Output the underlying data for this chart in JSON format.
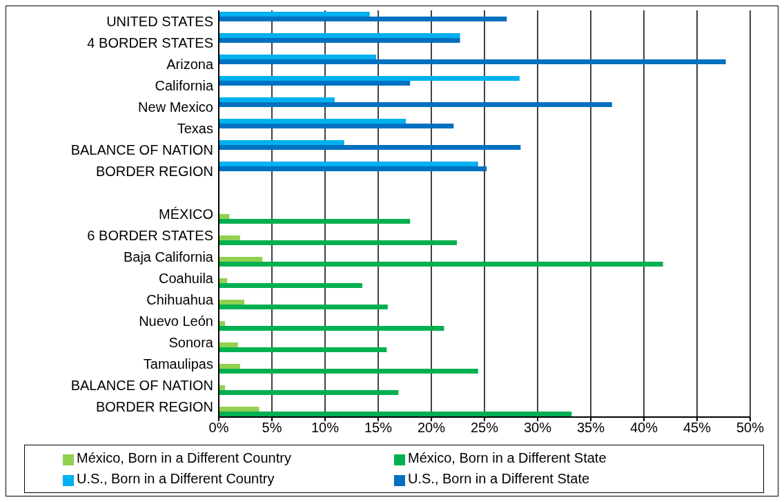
{
  "chart_data": {
    "type": "bar",
    "orientation": "horizontal",
    "categories": [
      "UNITED STATES",
      "4 BORDER STATES",
      "Arizona",
      "California",
      "New Mexico",
      "Texas",
      "BALANCE OF NATION",
      "BORDER REGION",
      null,
      "MÉXICO",
      "6 BORDER STATES",
      "Baja California",
      "Coahuila",
      "Chihuahua",
      "Nuevo León",
      "Sonora",
      "Tamaulipas",
      "BALANCE OF NATION",
      "BORDER REGION"
    ],
    "series": [
      {
        "name": "U.S., Born in a Different Country",
        "color": "#00b0f0",
        "values": [
          14.2,
          22.7,
          14.8,
          28.3,
          10.9,
          17.6,
          11.8,
          24.4,
          null,
          null,
          null,
          null,
          null,
          null,
          null,
          null,
          null,
          null,
          null
        ]
      },
      {
        "name": "U.S., Born in a Different State",
        "color": "#0070c0",
        "values": [
          27.1,
          22.7,
          47.7,
          18.0,
          37.0,
          22.1,
          28.4,
          25.2,
          null,
          null,
          null,
          null,
          null,
          null,
          null,
          null,
          null,
          null,
          null
        ]
      },
      {
        "name": "México, Born in a Different Country",
        "color": "#92d050",
        "values": [
          null,
          null,
          null,
          null,
          null,
          null,
          null,
          null,
          null,
          1.0,
          2.0,
          4.1,
          0.8,
          2.4,
          0.6,
          1.8,
          2.0,
          0.6,
          3.8
        ]
      },
      {
        "name": "México, Born in a Different State",
        "color": "#00b050",
        "values": [
          null,
          null,
          null,
          null,
          null,
          null,
          null,
          null,
          null,
          18.0,
          22.4,
          41.8,
          13.5,
          15.9,
          21.2,
          15.8,
          24.4,
          16.9,
          33.2
        ]
      }
    ],
    "xlim": [
      0,
      50
    ],
    "xticks": [
      {
        "value": 0,
        "label": "0%"
      },
      {
        "value": 5,
        "label": "5%"
      },
      {
        "value": 10,
        "label": "10%"
      },
      {
        "value": 15,
        "label": "15%"
      },
      {
        "value": 20,
        "label": "20%"
      },
      {
        "value": 25,
        "label": "25%"
      },
      {
        "value": 30,
        "label": "30%"
      },
      {
        "value": 35,
        "label": "35%"
      },
      {
        "value": 40,
        "label": "40%"
      },
      {
        "value": 45,
        "label": "45%"
      },
      {
        "value": 50,
        "label": "50%"
      }
    ],
    "grid": "x",
    "legend": "bottom"
  }
}
